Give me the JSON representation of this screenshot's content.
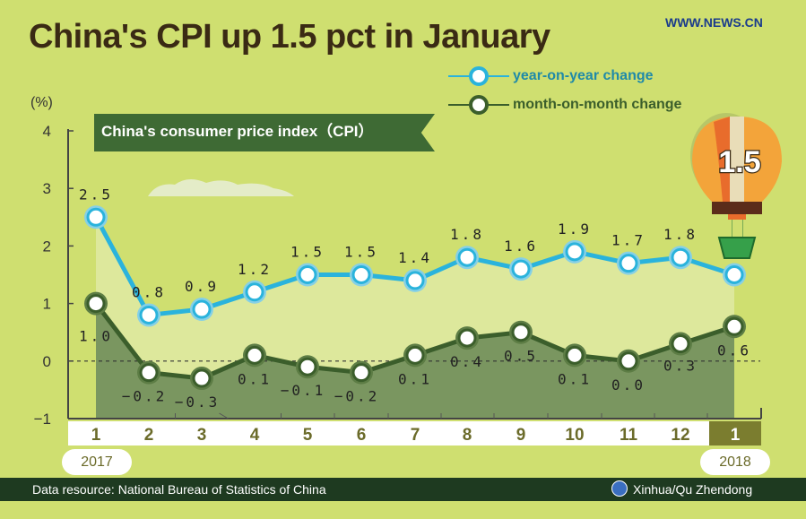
{
  "title": "China's CPI up 1.5 pct in January",
  "site": "WWW.NEWS.CN",
  "banner": "China's consumer price index（CPI）",
  "balloon_value": "1.5",
  "footer": {
    "source": "Data resource: National Bureau of Statistics of China",
    "credit": "Xinhua/Qu Zhendong"
  },
  "colors": {
    "yoy": "#2ab3dc",
    "mom": "#3b5e2b",
    "background": "#cfdf70"
  },
  "chart_data": {
    "type": "line",
    "ylabel": "(%)",
    "ylim": [
      -1,
      4
    ],
    "yticks": [
      "4",
      "3",
      "2",
      "1",
      "0",
      "−1"
    ],
    "categories": [
      "1",
      "2",
      "3",
      "4",
      "5",
      "6",
      "7",
      "8",
      "9",
      "10",
      "11",
      "12",
      "1"
    ],
    "years": [
      "2017",
      "2018"
    ],
    "series": [
      {
        "name": "year-on-year change",
        "values": [
          2.5,
          0.8,
          0.9,
          1.2,
          1.5,
          1.5,
          1.4,
          1.8,
          1.6,
          1.9,
          1.7,
          1.8,
          1.5
        ],
        "labels": [
          "2.5",
          "0.8",
          "0.9",
          "1.2",
          "1.5",
          "1.5",
          "1.4",
          "1.8",
          "1.6",
          "1.9",
          "1.7",
          "1.8",
          ""
        ]
      },
      {
        "name": "month-on-month change",
        "values": [
          1.0,
          -0.2,
          -0.3,
          0.1,
          -0.1,
          -0.2,
          0.1,
          0.4,
          0.5,
          0.1,
          0.0,
          0.3,
          0.6
        ],
        "labels": [
          "1.0",
          "−0.2",
          "−0.3",
          "0.1",
          "−0.1",
          "−0.2",
          "0.1",
          "0.4",
          "0.5",
          "0.1",
          "0.0",
          "0.3",
          "0.6"
        ]
      }
    ]
  }
}
